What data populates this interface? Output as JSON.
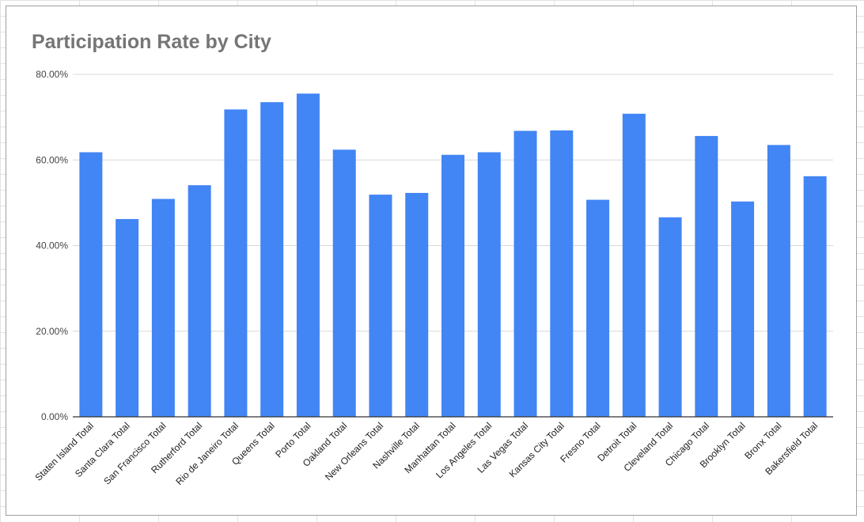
{
  "chart_data": {
    "type": "bar",
    "title": "Participation Rate by City",
    "xlabel": "",
    "ylabel": "",
    "ylim": [
      0,
      80
    ],
    "y_ticks": [
      "0.00%",
      "20.00%",
      "40.00%",
      "60.00%",
      "80.00%"
    ],
    "y_unit": "%",
    "grid": true,
    "legend": "none",
    "bar_color": "#4285f4",
    "categories": [
      "Staten Island Total",
      "Santa Clara Total",
      "San Francisco Total",
      "Rutherford Total",
      "Rio de Janeiro Total",
      "Queens Total",
      "Porto Total",
      "Oakland Total",
      "New Orleans Total",
      "Nashville Total",
      "Manhattan Total",
      "Los Angeles Total",
      "Las Vegas Total",
      "Kansas City Total",
      "Fresno Total",
      "Detroit Total",
      "Cleveland Total",
      "Chicago Total",
      "Brooklyn Total",
      "Bronx Total",
      "Bakersfield Total"
    ],
    "values": [
      61.8,
      46.2,
      50.9,
      54.1,
      71.8,
      73.5,
      75.5,
      62.4,
      51.9,
      52.3,
      61.2,
      61.8,
      66.8,
      66.9,
      50.7,
      70.8,
      46.6,
      65.6,
      50.3,
      63.5,
      56.2
    ]
  }
}
